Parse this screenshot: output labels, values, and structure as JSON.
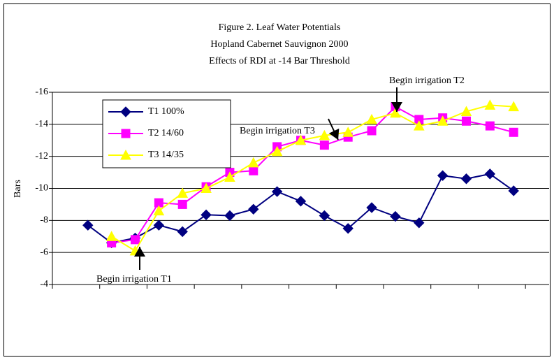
{
  "chart_data": {
    "type": "line",
    "title": [
      "Figure 2.  Leaf Water Potentials",
      "Hopland Cabernet Sauvignon 2000",
      "Effects of RDI at -14 Bar Threshold"
    ],
    "y_label": "Bars",
    "categories": [
      null,
      null,
      null,
      null,
      null,
      null,
      null,
      null,
      null,
      null,
      null,
      null,
      null,
      null,
      null,
      null,
      null,
      null,
      null,
      null,
      null
    ],
    "series": [
      {
        "name": "T1 100%",
        "color": "#000080",
        "marker": "diamond",
        "values": [
          null,
          -7.7,
          -6.6,
          -6.9,
          -7.7,
          -7.3,
          -8.35,
          -8.3,
          -8.7,
          -9.8,
          -9.2,
          -8.3,
          -7.5,
          -8.8,
          -8.25,
          -7.85,
          -10.8,
          -10.6,
          -10.9,
          -9.85,
          null
        ]
      },
      {
        "name": "T2 14/60",
        "color": "#ff00ff",
        "marker": "square",
        "values": [
          null,
          null,
          -6.6,
          -6.8,
          -9.1,
          -9.0,
          -10.1,
          -11.0,
          -11.1,
          -12.6,
          -13.0,
          -12.7,
          -13.2,
          -13.6,
          -15.1,
          -14.3,
          -14.4,
          -14.2,
          -13.9,
          -13.5,
          null
        ]
      },
      {
        "name": "T3 14/35",
        "color": "#ffff00",
        "marker": "triangle",
        "values": [
          null,
          null,
          -7.0,
          -6.1,
          -8.6,
          -9.7,
          -10.0,
          -10.7,
          -11.6,
          -12.3,
          -13.0,
          -13.3,
          -13.5,
          -14.3,
          -14.7,
          -13.9,
          -14.2,
          -14.8,
          -15.2,
          -15.1,
          null
        ]
      }
    ],
    "annotations": [
      "Begin irrigation T1",
      "Begin irrigation T3",
      "Begin irrigation T2"
    ],
    "ylim": [
      -4,
      -16
    ],
    "yticks": [
      -4,
      -6,
      -8,
      -10,
      -12,
      -14,
      -16
    ],
    "grid": true,
    "legend": "upper left"
  }
}
